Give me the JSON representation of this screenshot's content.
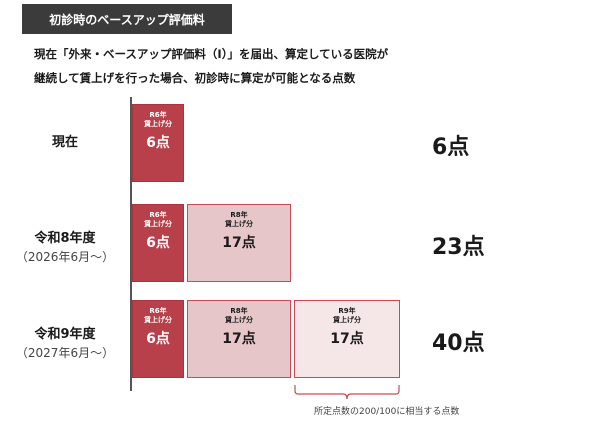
{
  "header": {
    "title": "初診時のベースアップ評価料"
  },
  "description": {
    "line1": "現在「外来・ベースアップ評価料（Ⅰ）」を届出、算定している医院が",
    "line2": "継続して賃上げを行った場合、初診時に算定が可能となる点数"
  },
  "rows": [
    {
      "label": "現在",
      "sub": "",
      "total": "6点",
      "boxes": [
        {
          "label": "R6年\n賃上げ分",
          "value": "6点"
        }
      ]
    },
    {
      "label": "令和8年度",
      "sub": "（2026年6月～）",
      "total": "23点",
      "boxes": [
        {
          "label": "R6年\n賃上げ分",
          "value": "6点"
        },
        {
          "label": "R8年\n賃上げ分",
          "value": "17点"
        }
      ]
    },
    {
      "label": "令和9年度",
      "sub": "（2027年6月～）",
      "total": "40点",
      "boxes": [
        {
          "label": "R6年\n賃上げ分",
          "value": "6点"
        },
        {
          "label": "R8年\n賃上げ分",
          "value": "17点"
        },
        {
          "label": "R9年\n賃上げ分",
          "value": "17点"
        }
      ]
    }
  ],
  "note": "所定点数の200/100に相当する点数",
  "colors": {
    "r6_fill": "#b8404a",
    "r8_fill": "#e6c6c9",
    "r9_fill": "#f5e6e7",
    "border": "#c94a55",
    "title_bg": "#3b3b3b"
  }
}
